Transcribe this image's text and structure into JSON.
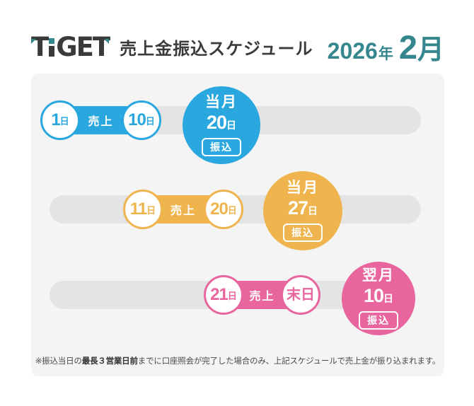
{
  "header": {
    "logo_text": "TiGET",
    "logo_letters": {
      "l1": "T",
      "l3": "G",
      "l4": "E",
      "l5": "T"
    },
    "title": "売上金振込スケジュール",
    "year": "2026",
    "year_unit": "年",
    "month": "2",
    "month_unit": "月"
  },
  "colors": {
    "blue": "#2aa7df",
    "yellow": "#f0b44e",
    "pink": "#e8659d",
    "teal_accent": "#35878d",
    "charcoal": "#3a3a3a",
    "card_background": "#f4f4f5",
    "track_gray": "#e4e4e5"
  },
  "rows": [
    {
      "period": "early-month",
      "start_day": "1",
      "start_unit": "日",
      "band_label": "売上",
      "end_day": "10",
      "end_unit": "日",
      "payout_month": "当月",
      "payout_day": "20",
      "payout_unit": "日",
      "payout_label": "振込"
    },
    {
      "period": "mid-month",
      "start_day": "11",
      "start_unit": "日",
      "band_label": "売上",
      "end_day": "20",
      "end_unit": "日",
      "payout_month": "当月",
      "payout_day": "27",
      "payout_unit": "日",
      "payout_label": "振込"
    },
    {
      "period": "late-month",
      "start_day": "21",
      "start_unit": "日",
      "band_label": "売上",
      "end_day": "末日",
      "end_unit": "",
      "payout_month": "翌月",
      "payout_day": "10",
      "payout_unit": "日",
      "payout_label": "振込"
    }
  ],
  "footnote": {
    "prefix": "※振込当日の",
    "bold": "最長３営業日前",
    "suffix": "までに口座照会が完了した場合のみ、上記スケジュールで売上金が振り込まれます。"
  }
}
